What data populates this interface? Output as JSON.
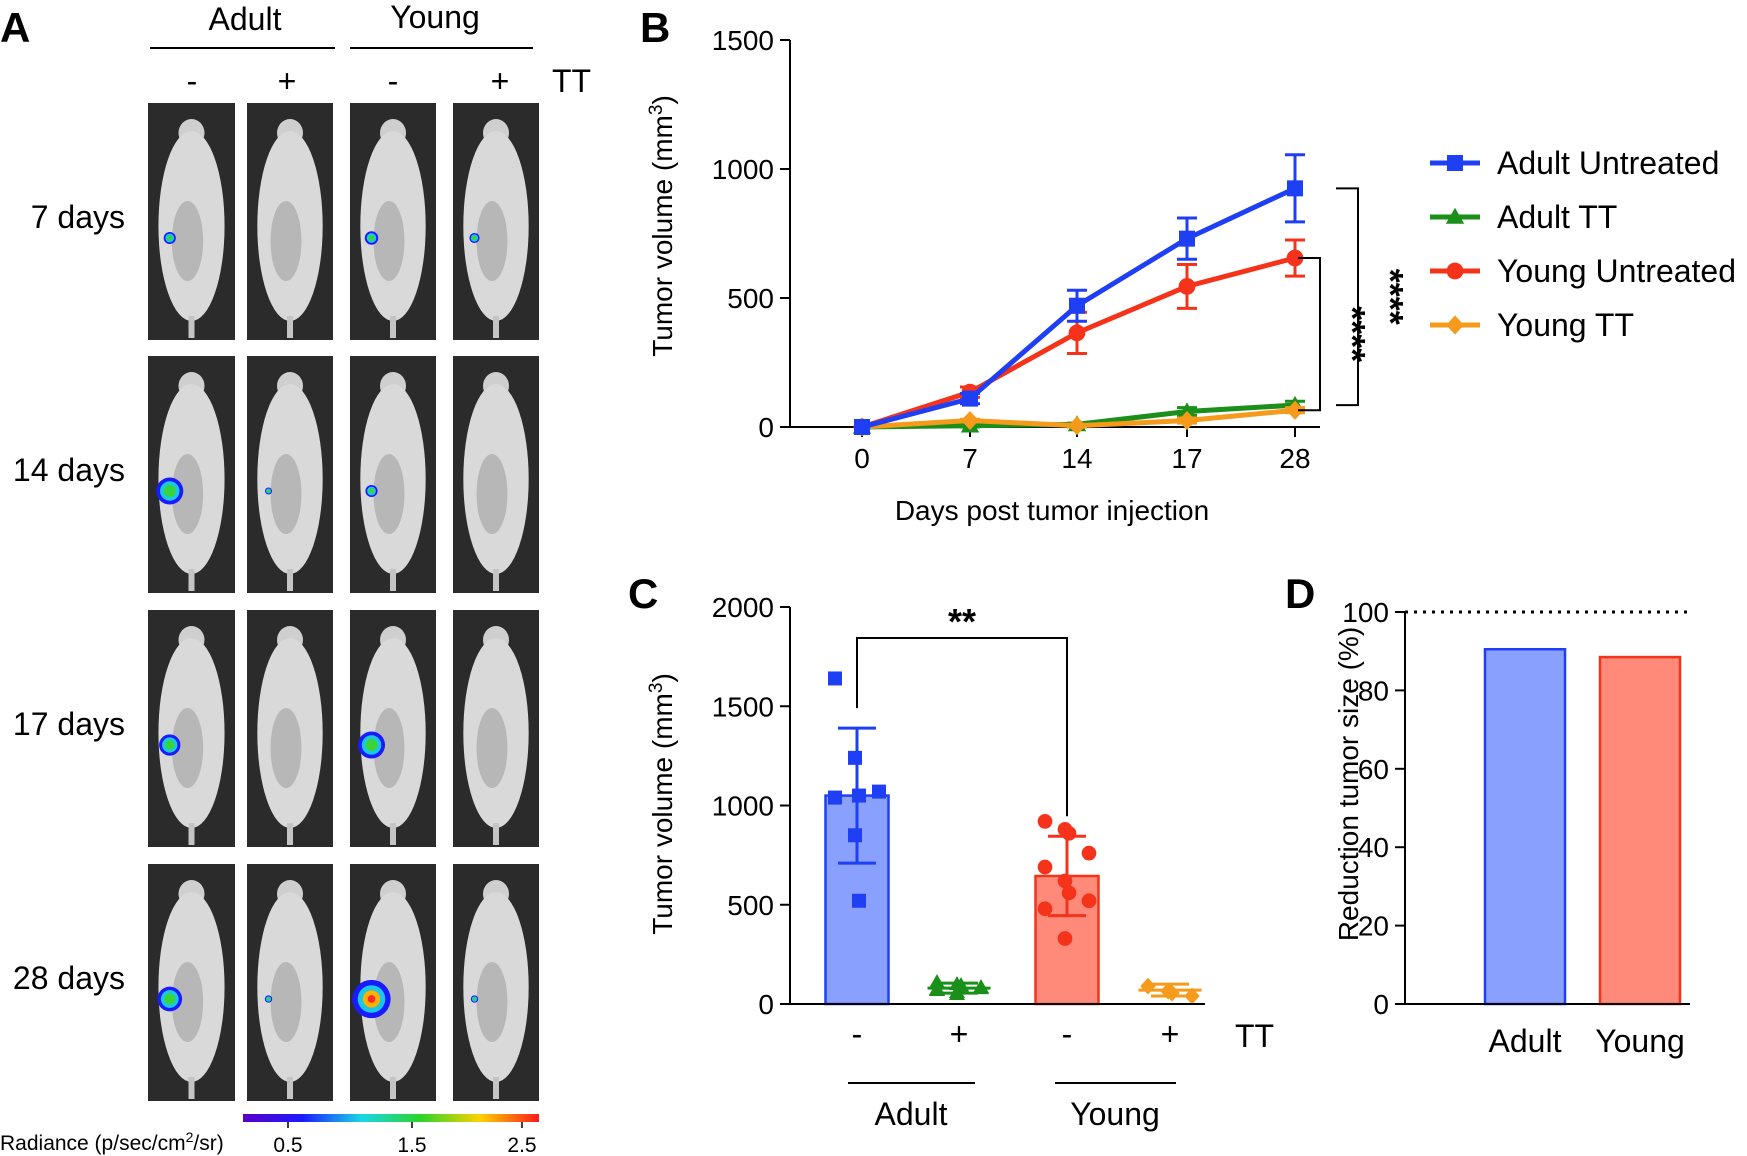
{
  "panels": {
    "A": {
      "letter": "A",
      "groups": [
        "Adult",
        "Young"
      ],
      "treatment_label": "TT",
      "treatment_signs": [
        "-",
        "+",
        "-",
        "+"
      ],
      "rows": [
        "7 days",
        "14 days",
        "17 days",
        "28 days"
      ],
      "radiance_label_pre": "Radiance (p/sec/cm",
      "radiance_label_sup": "2",
      "radiance_label_post": "/sr)",
      "radiance_ticks": [
        "0.5",
        "1.5",
        "2.5"
      ],
      "signal_intensity": [
        [
          0.18,
          0,
          0.22,
          0.12
        ],
        [
          0.62,
          0.03,
          0.18,
          0.02
        ],
        [
          0.45,
          0,
          0.62,
          0
        ],
        [
          0.55,
          0.04,
          0.95,
          0.04
        ]
      ]
    },
    "B": {
      "letter": "B"
    },
    "C": {
      "letter": "C"
    },
    "D": {
      "letter": "D"
    }
  },
  "chart_data": [
    {
      "panel": "B",
      "type": "line",
      "x": [
        0,
        7,
        14,
        17,
        28
      ],
      "xtick_labels": [
        "0",
        "7",
        "14",
        "17",
        "28"
      ],
      "xlabel": "Days post tumor injection",
      "ylabel_pre": "Tumor volume (mm",
      "ylabel_sup": "3",
      "ylabel_post": ")",
      "ylim": [
        0,
        1500
      ],
      "yticks": [
        0,
        500,
        1000,
        1500
      ],
      "series": [
        {
          "name": "Adult Untreated",
          "color": "#1f3ff5",
          "marker": "square",
          "values": [
            0,
            110,
            470,
            730,
            925
          ],
          "err": [
            0,
            20,
            60,
            80,
            130
          ]
        },
        {
          "name": "Adult TT",
          "color": "#1a8f1a",
          "marker": "triangle",
          "values": [
            0,
            5,
            10,
            60,
            85
          ],
          "err": [
            0,
            5,
            5,
            15,
            15
          ]
        },
        {
          "name": "Young Untreated",
          "color": "#f5331a",
          "marker": "circle",
          "values": [
            0,
            135,
            365,
            545,
            655
          ],
          "err": [
            0,
            20,
            80,
            85,
            70
          ]
        },
        {
          "name": "Young TT",
          "color": "#f59a1a",
          "marker": "diamond",
          "values": [
            0,
            25,
            5,
            25,
            65
          ],
          "err": [
            0,
            5,
            5,
            10,
            10
          ]
        }
      ],
      "significance": [
        {
          "label": "****",
          "from": "Adult Untreated",
          "to": "Adult TT"
        },
        {
          "label": "****",
          "from": "Young Untreated",
          "to": "Young TT"
        }
      ]
    },
    {
      "panel": "C",
      "type": "bar",
      "categories": [
        "Adult -",
        "Adult +",
        "Young -",
        "Young +"
      ],
      "signs": [
        "-",
        "+",
        "-",
        "+"
      ],
      "treatment_label": "TT",
      "groups": [
        "Adult",
        "Young"
      ],
      "ylabel_pre": "Tumor volume (mm",
      "ylabel_sup": "3",
      "ylabel_post": ")",
      "ylim": [
        0,
        2000
      ],
      "yticks": [
        0,
        500,
        1000,
        1500,
        2000
      ],
      "values": [
        1050,
        80,
        645,
        70
      ],
      "sd": [
        340,
        25,
        200,
        30
      ],
      "colors": [
        "#1f3ff5",
        "#1a8f1a",
        "#f5331a",
        "#f59a1a"
      ],
      "fills": [
        "#8aa0ff",
        null,
        "#ff8a7a",
        null
      ],
      "markers": [
        "square",
        "triangle",
        "circle",
        "diamond"
      ],
      "points": [
        [
          1640,
          1240,
          1050,
          1070,
          1040,
          850,
          520
        ],
        [
          110,
          100,
          90,
          80,
          70,
          60,
          95,
          85,
          75,
          50
        ],
        [
          920,
          880,
          860,
          760,
          690,
          620,
          560,
          520,
          480,
          330
        ],
        [
          90,
          65,
          55,
          40
        ]
      ],
      "significance": {
        "label": "**",
        "from": 0,
        "to": 2
      }
    },
    {
      "panel": "D",
      "type": "bar",
      "categories": [
        "Adult",
        "Young"
      ],
      "values": [
        90.5,
        88.5
      ],
      "colors": [
        "#1f3ff5",
        "#f5331a"
      ],
      "fills": [
        "#8aa0ff",
        "#ff8a7a"
      ],
      "ylabel": "Reduction tumor size (%)",
      "ylim": [
        0,
        100
      ],
      "yticks": [
        0,
        20,
        40,
        60,
        80,
        100
      ],
      "reference_line": 100
    }
  ]
}
